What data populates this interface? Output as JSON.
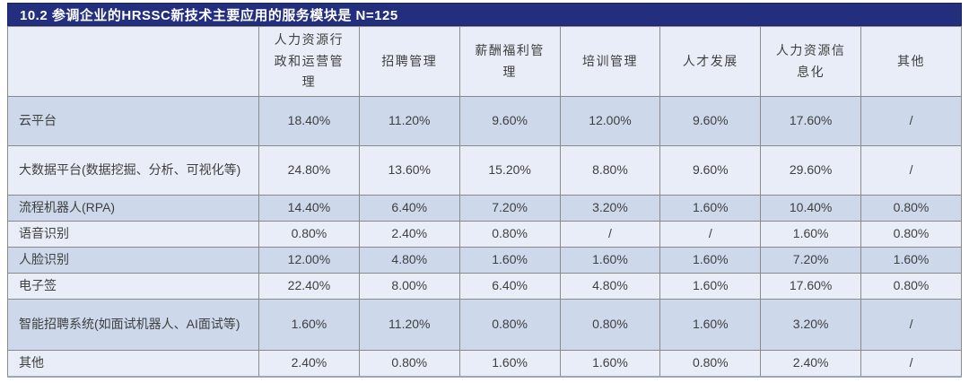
{
  "title": "10.2  参调企业的HRSSC新技术主要应用的服务模块是  N=125",
  "chart_data": {
    "type": "table",
    "corner_label": "",
    "columns": [
      "人力资源行政和运营管理",
      "招聘管理",
      "薪酬福利管理",
      "培训管理",
      "人才发展",
      "人力资源信息化",
      "其他"
    ],
    "rows": [
      {
        "label": "云平台",
        "values": [
          "18.40%",
          "11.20%",
          "9.60%",
          "12.00%",
          "9.60%",
          "17.60%",
          "/"
        ]
      },
      {
        "label": "大数据平台(数据挖掘、分析、可视化等)",
        "values": [
          "24.80%",
          "13.60%",
          "15.20%",
          "8.80%",
          "9.60%",
          "29.60%",
          "/"
        ]
      },
      {
        "label": "流程机器人(RPA)",
        "values": [
          "14.40%",
          "6.40%",
          "7.20%",
          "3.20%",
          "1.60%",
          "10.40%",
          "0.80%"
        ]
      },
      {
        "label": "语音识别",
        "values": [
          "0.80%",
          "2.40%",
          "0.80%",
          "/",
          "/",
          "1.60%",
          "0.80%"
        ]
      },
      {
        "label": "人脸识别",
        "values": [
          "12.00%",
          "4.80%",
          "1.60%",
          "1.60%",
          "1.60%",
          "7.20%",
          "1.60%"
        ]
      },
      {
        "label": "电子签",
        "values": [
          "22.40%",
          "8.00%",
          "6.40%",
          "4.80%",
          "1.60%",
          "17.60%",
          "0.80%"
        ]
      },
      {
        "label": "智能招聘系统(如面试机器人、AI面试等)",
        "values": [
          "1.60%",
          "11.20%",
          "0.80%",
          "0.80%",
          "1.60%",
          "3.20%",
          "/"
        ]
      },
      {
        "label": "其他",
        "values": [
          "2.40%",
          "0.80%",
          "1.60%",
          "1.60%",
          "0.80%",
          "2.40%",
          "/"
        ]
      }
    ]
  },
  "colors": {
    "title_bg": "#232F7E",
    "title_text": "#FFFFFF",
    "row_light": "#E9EDF8",
    "row_dark": "#CDD8EB",
    "border": "#8A8A8A",
    "cell_text": "#3F3F3F"
  }
}
